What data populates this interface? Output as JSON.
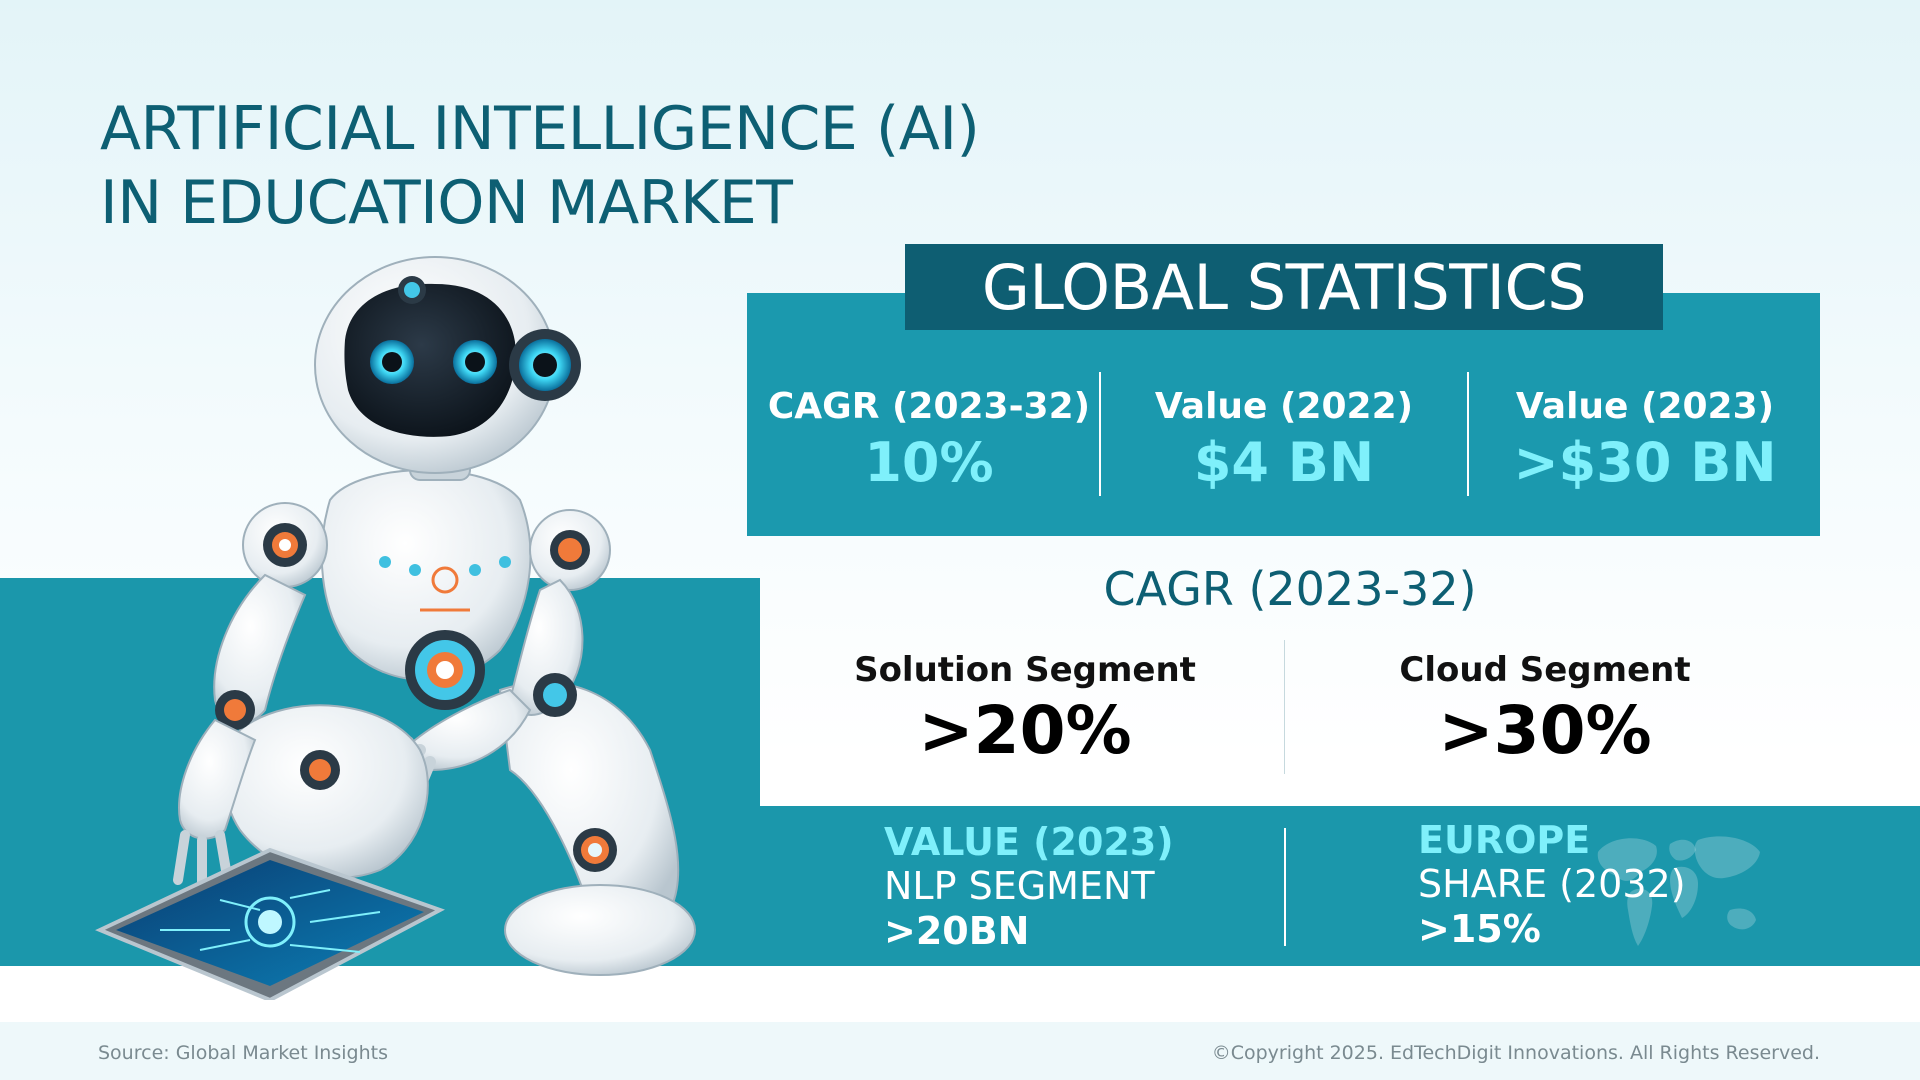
{
  "title": {
    "line1": "ARTIFICIAL INTELLIGENCE (AI)",
    "line2": "IN EDUCATION MARKET"
  },
  "global_stats": {
    "header": "GLOBAL STATISTICS",
    "items": [
      {
        "label": "CAGR (2023-32)",
        "value": "10%"
      },
      {
        "label": "Value (2022)",
        "value": "$4 BN"
      },
      {
        "label": "Value (2023)",
        "value": ">$30 BN"
      }
    ]
  },
  "cagr_section": {
    "heading": "CAGR (2023-32)",
    "segments": [
      {
        "label": "Solution Segment",
        "value": ">20%"
      },
      {
        "label": "Cloud Segment",
        "value": ">30%"
      }
    ]
  },
  "bottom": {
    "left": {
      "line1": "VALUE (2023)",
      "line2": "NLP SEGMENT",
      "line3": ">20BN"
    },
    "right": {
      "line1": "EUROPE",
      "line2": "SHARE (2032)",
      "line3": ">15%"
    }
  },
  "footer": {
    "source": "Source: Global Market Insights",
    "copyright": "©Copyright 2025. EdTechDigit Innovations. All Rights Reserved."
  },
  "colors": {
    "title": "#0d5f73",
    "teal": "#1b97ab",
    "dark_teal": "#0e5e72",
    "accent_cyan": "#7ff0fb"
  },
  "icons": [
    "robot-illustration",
    "tablet-illustration",
    "world-map-icon"
  ]
}
